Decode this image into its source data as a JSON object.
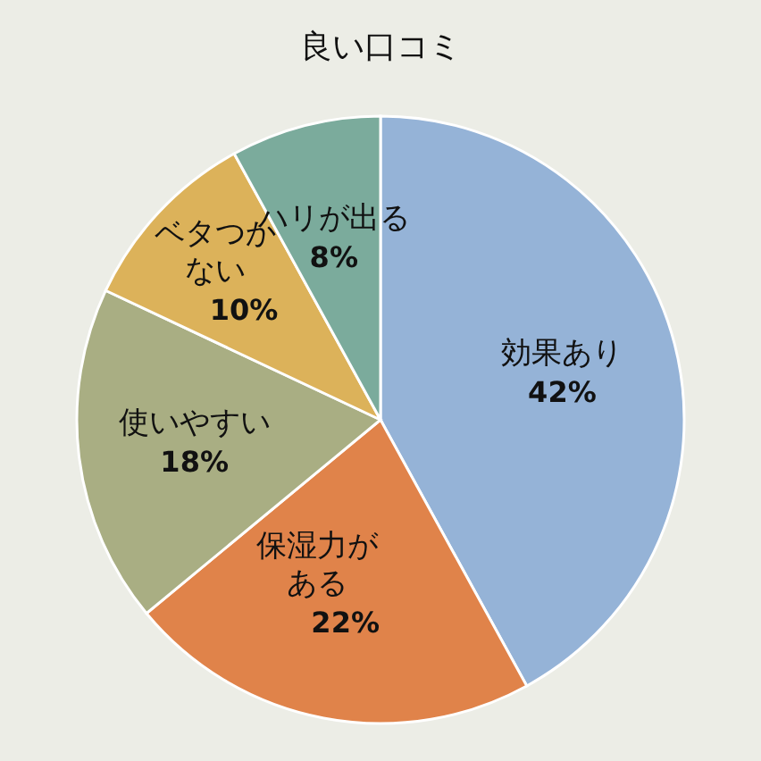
{
  "chart_data": {
    "type": "pie",
    "title": "良い口コミ",
    "categories": [
      "効果あり",
      "保湿力がある",
      "使いやすい",
      "ベタつかない",
      "ハリが出る"
    ],
    "values": [
      42,
      22,
      18,
      10,
      8
    ],
    "value_labels": [
      "42%",
      "22%",
      "18%",
      "10%",
      "8%"
    ],
    "colors": [
      "#95b3d7",
      "#e0834a",
      "#a9ae83",
      "#dcb25a",
      "#7bab9c"
    ]
  }
}
